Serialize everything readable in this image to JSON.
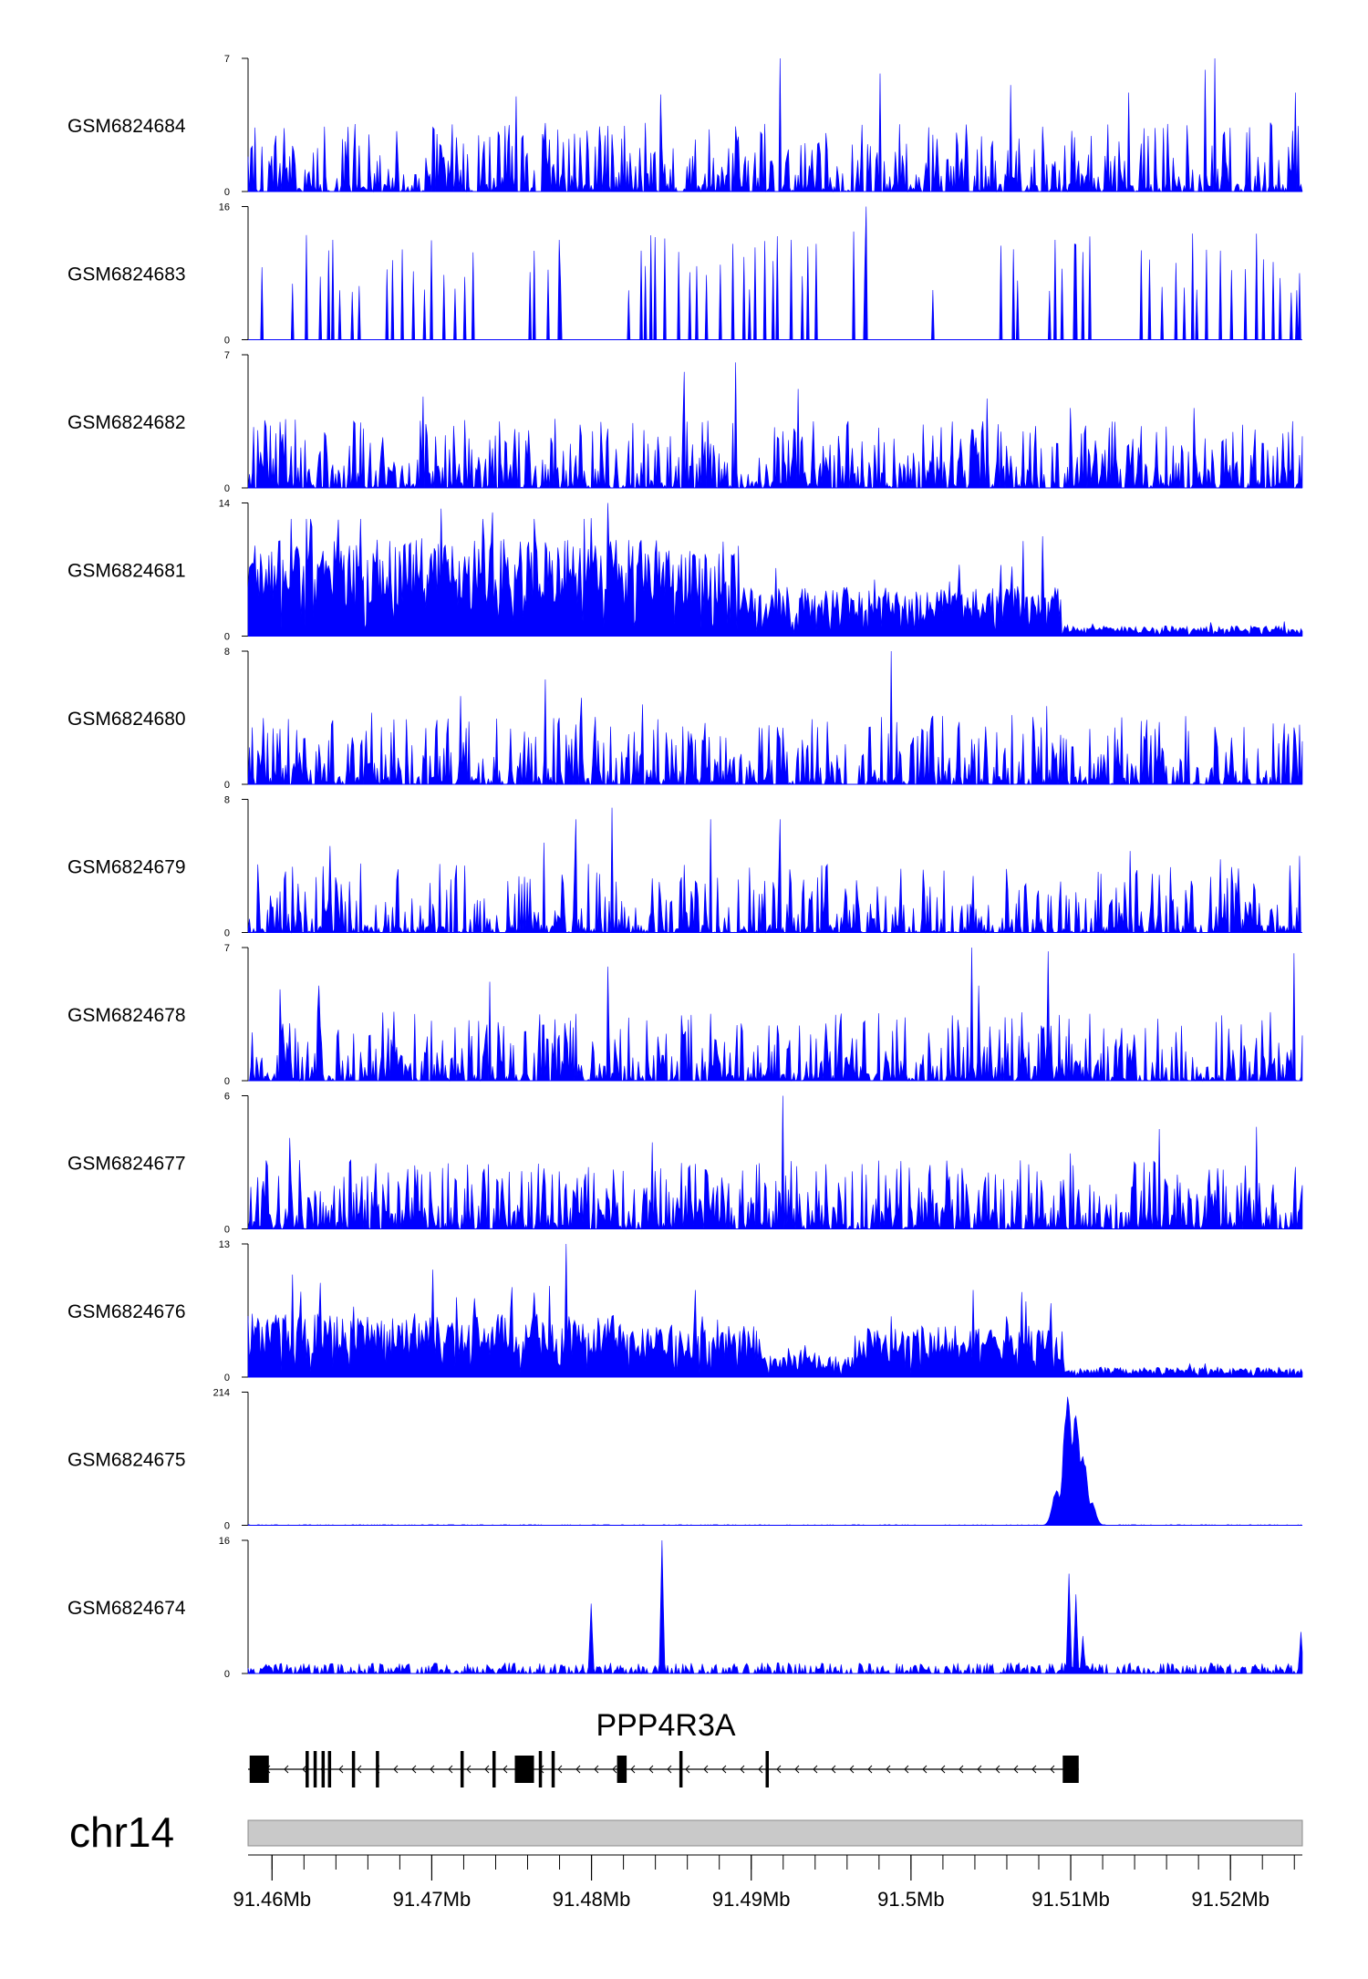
{
  "chart_data": {
    "type": "area",
    "title": "",
    "color": "#0000ff",
    "chromosome": "chr14",
    "x_unit": "Mb",
    "xlim": [
      91.4585,
      91.5245
    ],
    "x_ticks": [
      {
        "value": 91.46,
        "label": "91.46Mb"
      },
      {
        "value": 91.47,
        "label": "91.47Mb"
      },
      {
        "value": 91.48,
        "label": "91.48Mb"
      },
      {
        "value": 91.49,
        "label": "91.49Mb"
      },
      {
        "value": 91.5,
        "label": "91.5Mb"
      },
      {
        "value": 91.51,
        "label": "91.51Mb"
      },
      {
        "value": 91.52,
        "label": "91.52Mb"
      }
    ],
    "gene": {
      "name": "PPP4R3A",
      "strand": "-",
      "start": 91.4585,
      "end": 91.5105,
      "exons": [
        [
          91.4586,
          91.4598
        ],
        [
          91.4621,
          91.4623
        ],
        [
          91.4626,
          91.4628
        ],
        [
          91.4631,
          91.4633
        ],
        [
          91.4635,
          91.4637
        ],
        [
          91.465,
          91.4652
        ],
        [
          91.4665,
          91.4667
        ],
        [
          91.4718,
          91.472
        ],
        [
          91.4738,
          91.474
        ],
        [
          91.4752,
          91.4764
        ],
        [
          91.4767,
          91.4769
        ],
        [
          91.4775,
          91.4777
        ],
        [
          91.4816,
          91.4822
        ],
        [
          91.4855,
          91.4857
        ],
        [
          91.4909,
          91.4911
        ],
        [
          91.5095,
          91.5105
        ]
      ]
    },
    "series": [
      {
        "name": "GSM6824684",
        "ymax": 7,
        "ymin": 0,
        "seed": 11,
        "shape": "spiky",
        "density": 0.42,
        "peaks": [
          [
            91.4918,
            7
          ],
          [
            91.4981,
            6.2
          ],
          [
            91.519,
            7
          ],
          [
            91.5184,
            6.4
          ],
          [
            91.4753,
            5
          ],
          [
            91.4843,
            5.1
          ],
          [
            91.5136,
            5.2
          ],
          [
            91.5062,
            5.6
          ],
          [
            91.5241,
            5.2
          ]
        ]
      },
      {
        "name": "GSM6824683",
        "ymax": 16,
        "ymin": 0,
        "seed": 23,
        "shape": "triangles",
        "density": 0.3,
        "peaks": [
          [
            91.4638,
            12
          ],
          [
            91.478,
            12
          ],
          [
            91.4925,
            12
          ],
          [
            91.4972,
            16
          ],
          [
            91.4964,
            13
          ],
          [
            91.509,
            12
          ],
          [
            91.5102,
            11.5
          ],
          [
            91.5216,
            8
          ],
          [
            91.5243,
            8
          ]
        ]
      },
      {
        "name": "GSM6824682",
        "ymax": 7,
        "ymin": 0,
        "seed": 37,
        "shape": "spiky",
        "density": 0.5,
        "peaks": [
          [
            91.489,
            6.6
          ],
          [
            91.4858,
            6.1
          ],
          [
            91.4929,
            5.2
          ],
          [
            91.5048,
            4.7
          ],
          [
            91.4695,
            4.8
          ],
          [
            91.51,
            4.2
          ],
          [
            91.5177,
            4.2
          ]
        ]
      },
      {
        "name": "GSM6824681",
        "ymax": 14,
        "ymin": 0,
        "seed": 41,
        "shape": "dense",
        "density": 0.8,
        "segments": [
          [
            91.4585,
            91.4892,
            8.5
          ],
          [
            91.4892,
            91.5094,
            4.3
          ],
          [
            91.5094,
            91.5245,
            0.9
          ]
        ],
        "peaks": [
          [
            91.4706,
            13.4
          ],
          [
            91.481,
            14
          ],
          [
            91.4738,
            13
          ],
          [
            91.48,
            12.4
          ],
          [
            91.4625,
            11.5
          ],
          [
            91.507,
            10
          ],
          [
            91.5082,
            10.5
          ],
          [
            91.503,
            7.5
          ]
        ]
      },
      {
        "name": "GSM6824680",
        "ymax": 8,
        "ymin": 0,
        "seed": 53,
        "shape": "spiky",
        "density": 0.45,
        "peaks": [
          [
            91.4988,
            8
          ],
          [
            91.4771,
            6.3
          ],
          [
            91.4718,
            5.3
          ],
          [
            91.4832,
            4.8
          ],
          [
            91.4794,
            5.2
          ],
          [
            91.4662,
            4.3
          ],
          [
            91.5085,
            4.7
          ],
          [
            91.5012,
            3.2
          ]
        ]
      },
      {
        "name": "GSM6824679",
        "ymax": 8,
        "ymin": 0,
        "seed": 67,
        "shape": "spiky",
        "density": 0.4,
        "peaks": [
          [
            91.4813,
            7.5
          ],
          [
            91.479,
            6.8
          ],
          [
            91.4918,
            6.8
          ],
          [
            91.4875,
            6.8
          ],
          [
            91.477,
            5.4
          ],
          [
            91.4636,
            5.2
          ],
          [
            91.5137,
            4.9
          ],
          [
            91.5243,
            4.6
          ],
          [
            91.5194,
            4.4
          ]
        ]
      },
      {
        "name": "GSM6824678",
        "ymax": 7,
        "ymin": 0,
        "seed": 79,
        "shape": "spiky",
        "density": 0.45,
        "peaks": [
          [
            91.5038,
            7
          ],
          [
            91.5086,
            6.8
          ],
          [
            91.481,
            6
          ],
          [
            91.524,
            6.7
          ],
          [
            91.4736,
            5.2
          ],
          [
            91.4629,
            5
          ],
          [
            91.4605,
            4.8
          ],
          [
            91.5042,
            5
          ]
        ]
      },
      {
        "name": "GSM6824677",
        "ymax": 6,
        "ymin": 0,
        "seed": 83,
        "shape": "spiky",
        "density": 0.55,
        "peaks": [
          [
            91.492,
            6
          ],
          [
            91.5155,
            4.5
          ],
          [
            91.5216,
            4.6
          ],
          [
            91.4838,
            3.9
          ],
          [
            91.4611,
            4.1
          ],
          [
            91.51,
            3.4
          ]
        ]
      },
      {
        "name": "GSM6824676",
        "ymax": 13,
        "ymin": 0,
        "seed": 97,
        "shape": "dense",
        "density": 0.8,
        "segments": [
          [
            91.4585,
            91.482,
            5.2
          ],
          [
            91.482,
            91.4906,
            4.3
          ],
          [
            91.4906,
            91.4965,
            1.8
          ],
          [
            91.4965,
            91.5096,
            4.3
          ],
          [
            91.5096,
            91.5245,
            0.8
          ]
        ],
        "peaks": [
          [
            91.4784,
            13
          ],
          [
            91.4701,
            10.5
          ],
          [
            91.4613,
            10
          ],
          [
            91.4865,
            8.5
          ],
          [
            91.5039,
            8.5
          ],
          [
            91.5069,
            8.3
          ],
          [
            91.463,
            9.2
          ]
        ]
      },
      {
        "name": "GSM6824675",
        "ymax": 214,
        "ymin": 0,
        "seed": 101,
        "shape": "peak",
        "density": 0.0,
        "peaks": [
          [
            91.5098,
            214
          ],
          [
            91.5103,
            185
          ],
          [
            91.5108,
            120
          ],
          [
            91.5091,
            60
          ],
          [
            91.5113,
            40
          ]
        ]
      },
      {
        "name": "GSM6824674",
        "ymax": 16,
        "ymin": 0,
        "seed": 113,
        "shape": "low",
        "density": 0.3,
        "peaks": [
          [
            91.4844,
            16
          ],
          [
            91.48,
            8.4
          ],
          [
            91.5099,
            12
          ],
          [
            91.5103,
            9.5
          ],
          [
            91.5108,
            4.5
          ],
          [
            91.5244,
            5
          ]
        ]
      }
    ]
  }
}
